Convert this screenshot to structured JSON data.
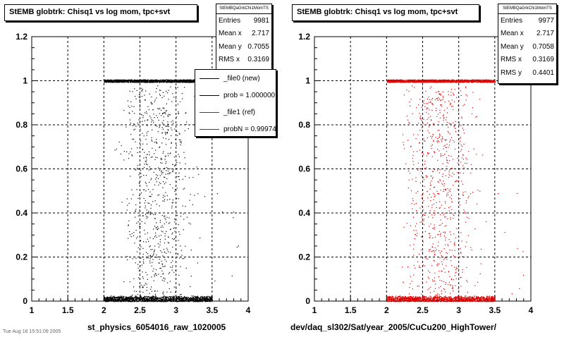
{
  "colors": {
    "left_points": "#000000",
    "right_points": "#e00000",
    "grid": "#000000"
  },
  "panels": [
    {
      "title": "StEMB globtrk: Chisq1 vs log mom, tpc+svt",
      "stats": {
        "header": "StEMBQaGrkChi1MomTS",
        "rows": [
          {
            "label": "Entries",
            "value": "9981"
          },
          {
            "label": "Mean x",
            "value": "2.717"
          },
          {
            "label": "Mean y",
            "value": "0.7055"
          },
          {
            "label": "RMS x",
            "value": "0.3169"
          }
        ]
      },
      "legend": [
        {
          "label": "_file0 (new)",
          "color": "black"
        },
        {
          "label": "prob = 1.000000",
          "color": "black"
        },
        {
          "label": "_file1 (ref)",
          "color": "red"
        },
        {
          "label": "probN = 0.999741",
          "color": "red"
        }
      ],
      "xlabel": "st_physics_6054016_raw_1020005"
    },
    {
      "title": "StEMB globtrk: Chisq1 vs log mom, tpc+svt",
      "stats": {
        "header": "StEMBQaGrkChi1MomTS",
        "rows": [
          {
            "label": "Entries",
            "value": "9977"
          },
          {
            "label": "Mean x",
            "value": "2.717"
          },
          {
            "label": "Mean y",
            "value": "0.7058"
          },
          {
            "label": "RMS x",
            "value": "0.3169"
          },
          {
            "label": "RMS y",
            "value": "0.4401"
          }
        ]
      },
      "xlabel": "dev/daq_sl302/Sat/year_2005/CuCu200_HighTower/"
    }
  ],
  "footer_note": "Tue Aug 16 15:51:09 2005",
  "chart_data": [
    {
      "type": "scatter",
      "title": "StEMB globtrk: Chisq1 vs log mom, tpc+svt",
      "xlabel": "st_physics_6054016_raw_1020005",
      "ylabel": "",
      "xlim": [
        1,
        4
      ],
      "ylim": [
        0,
        1.2
      ],
      "xticks": [
        "1",
        "1.5",
        "2",
        "2.5",
        "3",
        "3.5",
        "4"
      ],
      "yticks": [
        "0",
        "0.2",
        "0.4",
        "0.6",
        "0.8",
        "1",
        "1.2"
      ],
      "grid": true,
      "series": [
        {
          "name": "_file0 (new)",
          "color": "#000000",
          "description_bands": [
            {
              "x": [
                2.0,
                3.5
              ],
              "y": [
                1.0,
                1.0
              ],
              "density": "dense"
            },
            {
              "x": [
                2.0,
                3.5
              ],
              "y": [
                0.0,
                0.02
              ],
              "density": "dense"
            },
            {
              "x": [
                2.05,
                3.45
              ],
              "y": [
                0.02,
                0.98
              ],
              "density": "sparse"
            }
          ]
        }
      ],
      "entries": 9981,
      "mean_x": 2.717,
      "mean_y": 0.7055,
      "rms_x": 0.3169
    },
    {
      "type": "scatter",
      "title": "StEMB globtrk: Chisq1 vs log mom, tpc+svt",
      "xlabel": "dev/daq_sl302/Sat/year_2005/CuCu200_HighTower/",
      "ylabel": "",
      "xlim": [
        1,
        4
      ],
      "ylim": [
        0,
        1.2
      ],
      "xticks": [
        "1",
        "1.5",
        "2",
        "2.5",
        "3",
        "3.5",
        "4"
      ],
      "yticks": [
        "0",
        "0.2",
        "0.4",
        "0.6",
        "0.8",
        "1",
        "1.2"
      ],
      "grid": true,
      "series": [
        {
          "name": "_file1 (ref)",
          "color": "#e00000",
          "description_bands": [
            {
              "x": [
                2.0,
                3.5
              ],
              "y": [
                1.0,
                1.0
              ],
              "density": "dense"
            },
            {
              "x": [
                2.0,
                3.5
              ],
              "y": [
                0.0,
                0.02
              ],
              "density": "dense"
            },
            {
              "x": [
                2.05,
                3.45
              ],
              "y": [
                0.02,
                0.98
              ],
              "density": "sparse"
            }
          ]
        }
      ],
      "entries": 9977,
      "mean_x": 2.717,
      "mean_y": 0.7058,
      "rms_x": 0.3169,
      "rms_y": 0.4401
    }
  ]
}
